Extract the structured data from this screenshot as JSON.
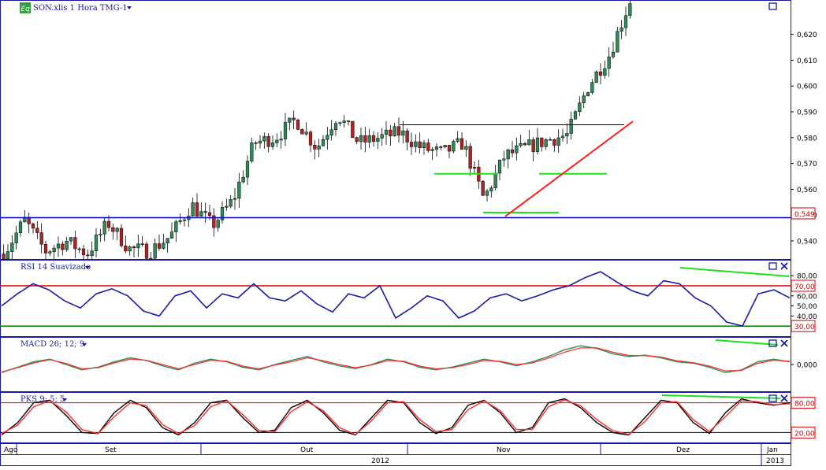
{
  "colors": {
    "accent": "#1a1aa6",
    "hline_blue": "#0000cc",
    "hline_red": "#e00000",
    "hline_green": "#007a00",
    "trend_green": "#22dd22",
    "trend_red": "#ff2020",
    "candle_up": "#2e8b57",
    "candle_down": "#b22222",
    "signal_red": "#ff2a2a",
    "eq_badge": "#2e9e3e"
  },
  "main_panel": {
    "badge": "Eq",
    "title": "SON.xlis 1 Hora TMG-1",
    "price_tag": "0,549",
    "y_ticks": [
      "0,540",
      "0,550",
      "0,560",
      "0,570",
      "0,580",
      "0,590",
      "0,600",
      "0,610",
      "0,620"
    ],
    "icons": [
      "dropdown-triangle-icon",
      "maximize-square-icon"
    ]
  },
  "rsi_panel": {
    "title": "RSI 14 Suavizado",
    "y_ticks": [
      "40,00",
      "50,00",
      "60,00",
      "80,00"
    ],
    "tag_high": "70,00",
    "tag_low": "30,00",
    "icons": [
      "maximize-square-icon",
      "close-x-icon"
    ]
  },
  "macd_panel": {
    "title": "MACD 26; 12; 9",
    "y_tick": "0,000",
    "icons": [
      "maximize-square-icon",
      "close-x-icon"
    ]
  },
  "pks_panel": {
    "title": "PKS 9; 5; 5",
    "tag_high": "80,00",
    "tag_low": "20,00",
    "icons": [
      "maximize-square-icon",
      "close-x-icon"
    ]
  },
  "x_axis": {
    "months": [
      "Ago",
      "Set",
      "Out",
      "Nov",
      "Dez",
      "Jan"
    ],
    "years": [
      "2012",
      "2013"
    ]
  },
  "chart_data": [
    {
      "type": "candlestick",
      "title": "SON.xlis 1 Hora TMG-1",
      "ylim": [
        0.533,
        0.633
      ],
      "horizontal_line": 0.549,
      "support_levels": [
        0.566,
        0.551
      ],
      "resistance_level": 0.585,
      "price_path": [
        {
          "x": "Ago",
          "y": 0.535
        },
        {
          "x": "Ago",
          "y": 0.548
        },
        {
          "x": "Ago",
          "y": 0.536
        },
        {
          "x": "Ago",
          "y": 0.54
        },
        {
          "x": "Set",
          "y": 0.535
        },
        {
          "x": "Set",
          "y": 0.547
        },
        {
          "x": "Set",
          "y": 0.537
        },
        {
          "x": "Set",
          "y": 0.536
        },
        {
          "x": "Set",
          "y": 0.542
        },
        {
          "x": "Set",
          "y": 0.554
        },
        {
          "x": "Set",
          "y": 0.546
        },
        {
          "x": "Set",
          "y": 0.556
        },
        {
          "x": "Out",
          "y": 0.578
        },
        {
          "x": "Out",
          "y": 0.58
        },
        {
          "x": "Out",
          "y": 0.587
        },
        {
          "x": "Out",
          "y": 0.576
        },
        {
          "x": "Out",
          "y": 0.589
        },
        {
          "x": "Out",
          "y": 0.578
        },
        {
          "x": "Out",
          "y": 0.58
        },
        {
          "x": "Out",
          "y": 0.582
        },
        {
          "x": "Nov",
          "y": 0.576
        },
        {
          "x": "Nov",
          "y": 0.574
        },
        {
          "x": "Nov",
          "y": 0.578
        },
        {
          "x": "Nov",
          "y": 0.556
        },
        {
          "x": "Nov",
          "y": 0.573
        },
        {
          "x": "Nov",
          "y": 0.576
        },
        {
          "x": "Nov",
          "y": 0.579
        },
        {
          "x": "Nov",
          "y": 0.581
        },
        {
          "x": "Dez",
          "y": 0.6
        },
        {
          "x": "Dez",
          "y": 0.612
        },
        {
          "x": "Dez",
          "y": 0.633
        }
      ]
    },
    {
      "type": "line",
      "title": "RSI 14 Suavizado",
      "ylim": [
        20,
        95
      ],
      "levels": [
        70,
        30
      ],
      "series": [
        {
          "values": [
            50,
            62,
            72,
            66,
            55,
            48,
            62,
            67,
            60,
            45,
            40,
            60,
            65,
            48,
            62,
            58,
            72,
            58,
            55,
            65,
            52,
            44,
            62,
            58,
            70,
            38,
            48,
            60,
            55,
            38,
            45,
            58,
            62,
            55,
            60,
            66,
            70,
            78,
            84,
            74,
            65,
            60,
            75,
            72,
            58,
            50,
            34,
            30,
            62,
            66,
            58
          ]
        }
      ]
    },
    {
      "type": "line",
      "title": "MACD 26; 12; 9",
      "ylim": [
        -1,
        1
      ],
      "series": [
        {
          "values": [
            -0.3,
            -0.1,
            0.1,
            0.2,
            0.0,
            -0.2,
            -0.1,
            0.1,
            0.25,
            0.15,
            -0.05,
            -0.2,
            0.05,
            0.2,
            0.1,
            -0.1,
            -0.2,
            0.0,
            0.15,
            0.3,
            0.1,
            -0.05,
            -0.15,
            0.0,
            0.2,
            0.1,
            -0.1,
            -0.2,
            -0.1,
            0.05,
            0.2,
            0.1,
            -0.05,
            0.1,
            0.3,
            0.55,
            0.7,
            0.6,
            0.4,
            0.3,
            0.35,
            0.25,
            0.1,
            0.05,
            -0.1,
            -0.3,
            -0.2,
            0.1,
            0.2,
            0.1
          ]
        },
        {
          "values": [
            -0.28,
            -0.12,
            0.06,
            0.18,
            0.04,
            -0.16,
            -0.12,
            0.06,
            0.2,
            0.16,
            0.0,
            -0.16,
            0.0,
            0.16,
            0.12,
            -0.06,
            -0.16,
            -0.02,
            0.1,
            0.25,
            0.14,
            0.0,
            -0.12,
            -0.02,
            0.15,
            0.12,
            -0.06,
            -0.16,
            -0.12,
            0.0,
            0.15,
            0.12,
            0.0,
            0.06,
            0.24,
            0.46,
            0.62,
            0.62,
            0.46,
            0.34,
            0.33,
            0.28,
            0.14,
            0.07,
            -0.06,
            -0.24,
            -0.22,
            0.04,
            0.16,
            0.12
          ]
        }
      ]
    },
    {
      "type": "line",
      "title": "PKS 9; 5; 5",
      "ylim": [
        0,
        100
      ],
      "levels": [
        80,
        20
      ],
      "series": [
        {
          "values": [
            15,
            40,
            80,
            85,
            55,
            20,
            18,
            60,
            85,
            70,
            30,
            15,
            40,
            80,
            85,
            50,
            20,
            25,
            70,
            85,
            60,
            25,
            15,
            50,
            85,
            80,
            40,
            18,
            30,
            75,
            85,
            60,
            20,
            30,
            80,
            88,
            70,
            40,
            20,
            15,
            50,
            85,
            80,
            40,
            18,
            60,
            88,
            80,
            75,
            80
          ]
        },
        {
          "values": [
            18,
            35,
            72,
            84,
            62,
            26,
            18,
            52,
            80,
            74,
            36,
            18,
            34,
            72,
            84,
            56,
            24,
            22,
            62,
            82,
            64,
            30,
            16,
            44,
            80,
            82,
            46,
            22,
            26,
            66,
            84,
            64,
            26,
            26,
            72,
            86,
            74,
            46,
            24,
            16,
            42,
            80,
            82,
            46,
            22,
            52,
            84,
            82,
            76,
            78
          ]
        }
      ]
    }
  ]
}
